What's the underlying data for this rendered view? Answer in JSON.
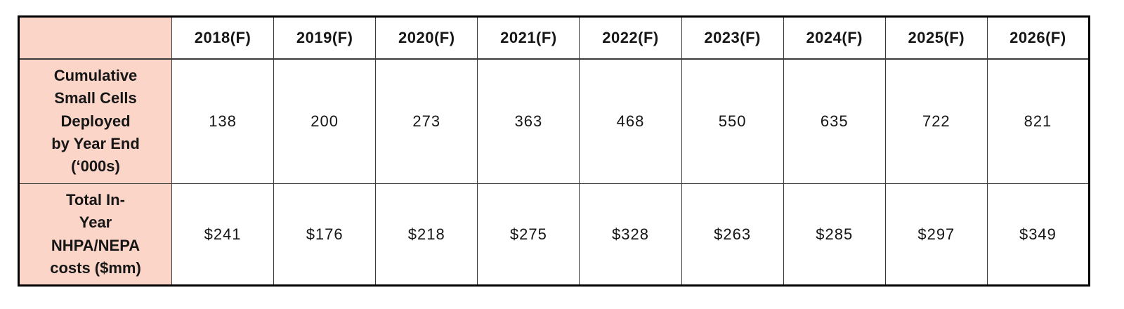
{
  "chart_data": {
    "type": "table",
    "title": "",
    "categories": [
      "2018(F)",
      "2019(F)",
      "2020(F)",
      "2021(F)",
      "2022(F)",
      "2023(F)",
      "2024(F)",
      "2025(F)",
      "2026(F)"
    ],
    "series": [
      {
        "name": "Cumulative Small Cells Deployed by Year End ('000s)",
        "values": [
          138,
          200,
          273,
          363,
          468,
          550,
          635,
          722,
          821
        ]
      },
      {
        "name": "Total In-Year NHPA/NEPA costs ($mm)",
        "values": [
          241,
          176,
          218,
          275,
          328,
          263,
          285,
          297,
          349
        ],
        "unit": "$mm"
      }
    ],
    "layout_hints": {
      "header_fill_color": "#fcd5c9",
      "border_color": "#000000",
      "grid": "on"
    }
  },
  "table": {
    "corner_label": "",
    "col_headers": [
      "2018(F)",
      "2019(F)",
      "2020(F)",
      "2021(F)",
      "2022(F)",
      "2023(F)",
      "2024(F)",
      "2025(F)",
      "2026(F)"
    ],
    "rows": [
      {
        "label": "Cumulative\nSmall Cells\nDeployed\nby Year End\n(‘000s)",
        "values": [
          "138",
          "200",
          "273",
          "363",
          "468",
          "550",
          "635",
          "722",
          "821"
        ]
      },
      {
        "label": "Total In-\nYear\nNHPA/NEPA\ncosts ($mm)",
        "values": [
          "$241",
          "$176",
          "$218",
          "$275",
          "$328",
          "$263",
          "$285",
          "$297",
          "$349"
        ]
      }
    ]
  }
}
